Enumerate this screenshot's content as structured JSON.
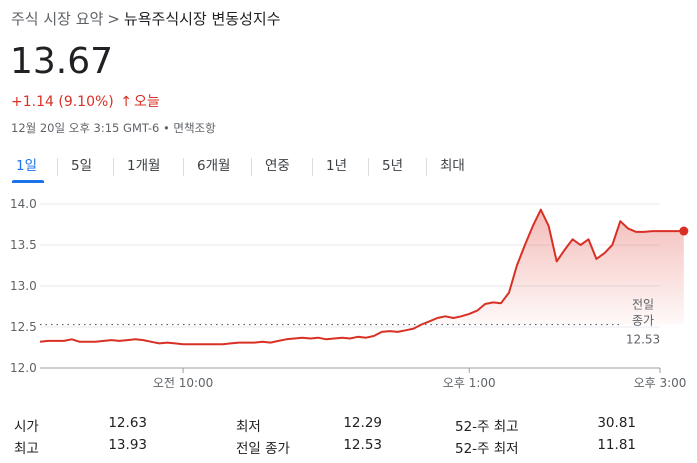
{
  "breadcrumb": {
    "root": "주식 시장 요약",
    "separator": ">",
    "current": "뉴욕주식시장 변동성지수"
  },
  "price": "13.67",
  "change": {
    "text": "+1.14 (9.10%)",
    "arrow": "↑",
    "period": "오늘",
    "color": "#d93025"
  },
  "timestamp": "12월 20일 오후 3:15 GMT-6 • 면책조항",
  "tabs": [
    {
      "label": "1일",
      "active": true
    },
    {
      "label": "5일",
      "active": false
    },
    {
      "label": "1개월",
      "active": false
    },
    {
      "label": "6개월",
      "active": false
    },
    {
      "label": "연중",
      "active": false
    },
    {
      "label": "1년",
      "active": false
    },
    {
      "label": "5년",
      "active": false
    },
    {
      "label": "최대",
      "active": false
    }
  ],
  "chart_data": {
    "type": "area",
    "ylim": [
      12.0,
      14.0
    ],
    "yticks": [
      "14.0",
      "13.5",
      "13.0",
      "12.5",
      "12.0"
    ],
    "xticks": [
      "오전 10:00",
      "오후 1:00",
      "오후 3:00"
    ],
    "xrange_minutes": [
      510,
      900
    ],
    "xtick_minutes": [
      600,
      780,
      900
    ],
    "previous_close": 12.53,
    "previous_close_label_line1": "전일",
    "previous_close_label_line2": "종가",
    "previous_close_value": "12.53",
    "line_color": "#d93025",
    "fill_color": "#d93025",
    "series": [
      {
        "x": [
          510,
          515,
          520,
          525,
          530,
          535,
          540,
          545,
          550,
          555,
          560,
          565,
          570,
          575,
          580,
          585,
          590,
          595,
          600,
          605,
          610,
          615,
          620,
          625,
          630,
          635,
          640,
          645,
          650,
          655,
          660,
          665,
          670,
          675,
          680,
          685,
          690,
          695,
          700,
          705,
          710,
          715,
          720,
          725,
          730,
          735,
          740,
          745,
          750,
          755,
          760,
          765,
          770,
          775,
          780,
          785,
          790,
          795,
          800,
          805,
          810,
          815,
          820,
          825,
          830,
          835,
          840,
          845,
          850,
          855,
          860,
          865,
          870,
          875,
          880,
          885,
          890,
          895,
          900,
          905,
          910,
          915
        ],
        "y": [
          12.32,
          12.33,
          12.33,
          12.33,
          12.35,
          12.32,
          12.32,
          12.32,
          12.33,
          12.34,
          12.33,
          12.34,
          12.35,
          12.34,
          12.32,
          12.3,
          12.31,
          12.3,
          12.29,
          12.29,
          12.29,
          12.29,
          12.29,
          12.29,
          12.3,
          12.31,
          12.31,
          12.31,
          12.32,
          12.31,
          12.33,
          12.35,
          12.36,
          12.37,
          12.36,
          12.37,
          12.35,
          12.36,
          12.37,
          12.36,
          12.38,
          12.37,
          12.39,
          12.44,
          12.45,
          12.44,
          12.46,
          12.48,
          12.53,
          12.57,
          12.61,
          12.63,
          12.61,
          12.63,
          12.66,
          12.7,
          12.78,
          12.8,
          12.79,
          12.92,
          13.25,
          13.5,
          13.73,
          13.93,
          13.73,
          13.3,
          13.44,
          13.57,
          13.5,
          13.57,
          13.33,
          13.4,
          13.5,
          13.79,
          13.7,
          13.66,
          13.66,
          13.67,
          13.67,
          13.67,
          13.67,
          13.67
        ]
      }
    ]
  },
  "stats": [
    {
      "label": "시가",
      "value": "12.63"
    },
    {
      "label": "최저",
      "value": "12.29"
    },
    {
      "label": "52-주 최고",
      "value": "30.81"
    },
    {
      "label": "최고",
      "value": "13.93"
    },
    {
      "label": "전일 종가",
      "value": "12.53"
    },
    {
      "label": "52-주 최저",
      "value": "11.81"
    }
  ]
}
